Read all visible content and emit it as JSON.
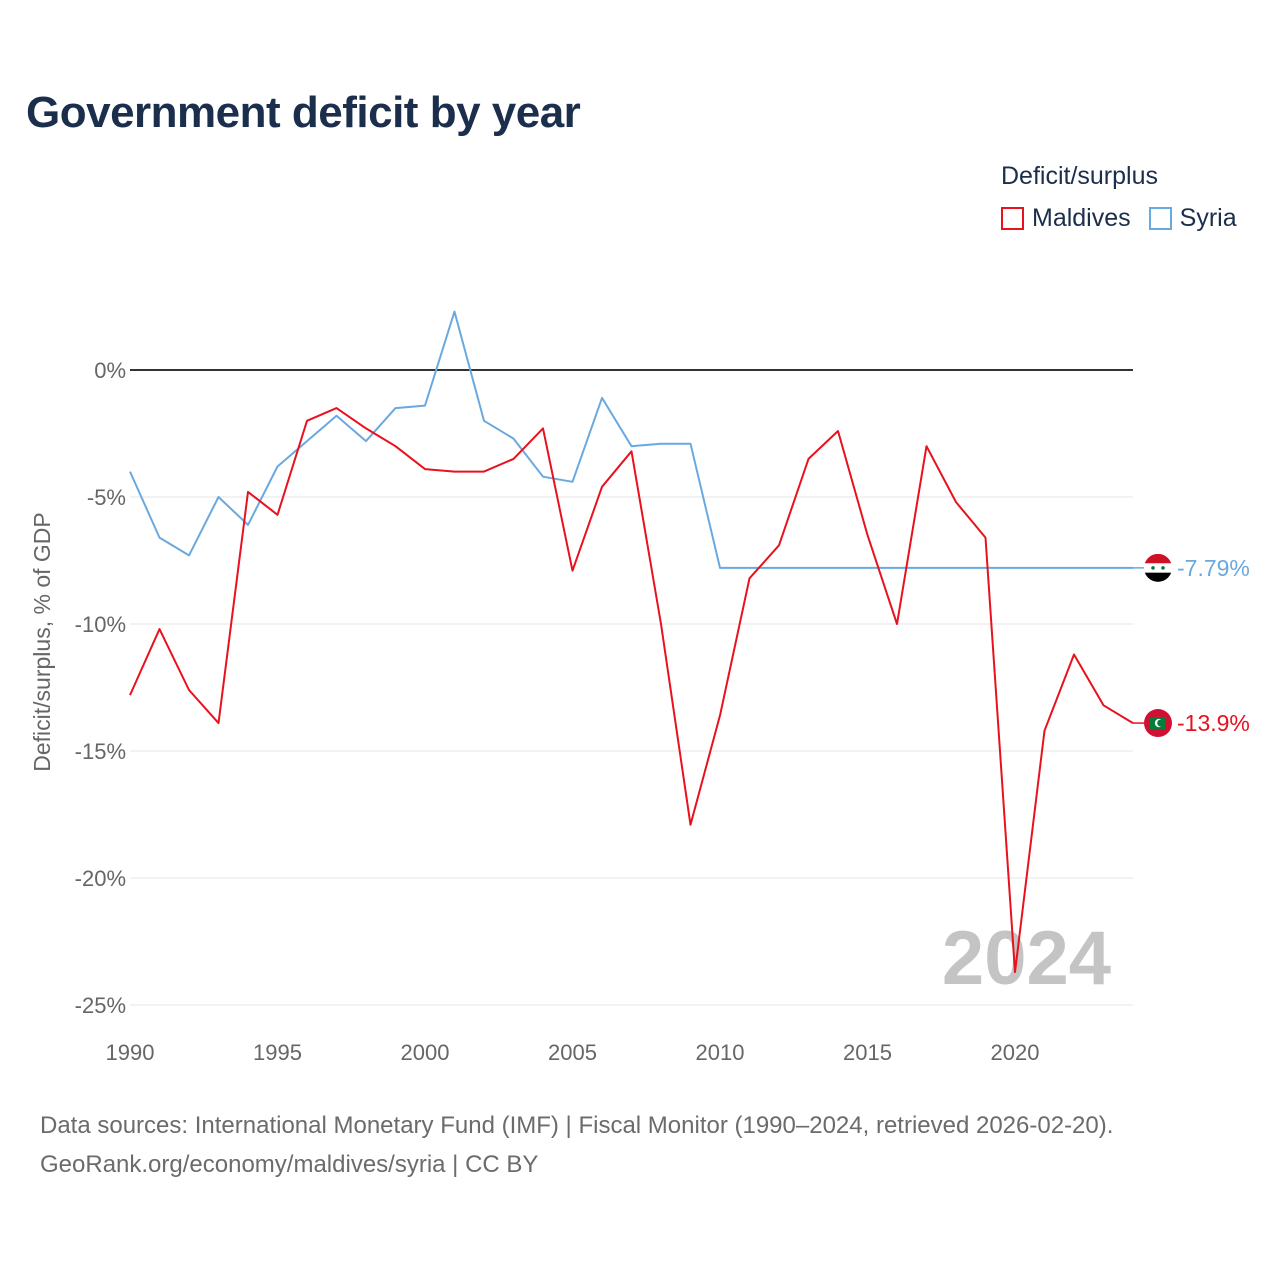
{
  "title": "Government deficit by year",
  "legend": {
    "title": "Deficit/surplus",
    "items": [
      {
        "label": "Maldives",
        "color": "#e8111d"
      },
      {
        "label": "Syria",
        "color": "#6aa9e0"
      }
    ]
  },
  "chart_data": {
    "type": "line",
    "ylabel": "Deficit/surplus, % of GDP",
    "xlim": [
      1990,
      2024
    ],
    "ylim": [
      -25,
      2.5
    ],
    "x_ticks": [
      1990,
      1995,
      2000,
      2005,
      2010,
      2015,
      2020
    ],
    "x_tick_labels": [
      "1990",
      "1995",
      "2000",
      "2005",
      "2010",
      "2015",
      "2020"
    ],
    "y_ticks": [
      0,
      -5,
      -10,
      -15,
      -20,
      -25
    ],
    "y_tick_labels": [
      "0%",
      "-5%",
      "-10%",
      "-15%",
      "-20%",
      "-25%"
    ],
    "x": [
      1990,
      1991,
      1992,
      1993,
      1994,
      1995,
      1996,
      1997,
      1998,
      1999,
      2000,
      2001,
      2002,
      2003,
      2004,
      2005,
      2006,
      2007,
      2008,
      2009,
      2010,
      2011,
      2012,
      2013,
      2014,
      2015,
      2016,
      2017,
      2018,
      2019,
      2020,
      2021,
      2022,
      2023,
      2024
    ],
    "series": [
      {
        "name": "Maldives",
        "color": "#e8111d",
        "end_label": "-13.9%",
        "values": [
          -12.8,
          -10.2,
          -12.6,
          -13.9,
          -4.8,
          -5.7,
          -2.0,
          -1.5,
          -2.3,
          -3.0,
          -3.9,
          -4.0,
          -4.0,
          -3.5,
          -2.3,
          -7.9,
          -4.6,
          -3.2,
          -10.0,
          -17.9,
          -13.6,
          -8.2,
          -6.9,
          -3.5,
          -2.4,
          -6.5,
          -10.0,
          -3.0,
          -5.2,
          -6.6,
          -23.7,
          -14.2,
          -11.2,
          -13.2,
          -13.9
        ]
      },
      {
        "name": "Syria",
        "color": "#6aa9e0",
        "end_label": "-7.79%",
        "values": [
          -4.0,
          -6.6,
          -7.3,
          -5.0,
          -6.1,
          -3.8,
          -2.8,
          -1.8,
          -2.8,
          -1.5,
          -1.4,
          2.3,
          -2.0,
          -2.7,
          -4.2,
          -4.4,
          -1.1,
          -3.0,
          -2.9,
          -2.9,
          -7.79,
          -7.79,
          -7.79,
          -7.79,
          -7.79,
          -7.79,
          -7.79,
          -7.79,
          -7.79,
          -7.79,
          -7.79,
          -7.79,
          -7.79,
          -7.79,
          -7.79
        ]
      }
    ],
    "year_watermark": "2024"
  },
  "footer": {
    "line1": "Data sources: International Monetary Fund (IMF) | Fiscal Monitor (1990–2024, retrieved 2026-02-20).",
    "line2": "GeoRank.org/economy/maldives/syria | CC BY"
  }
}
